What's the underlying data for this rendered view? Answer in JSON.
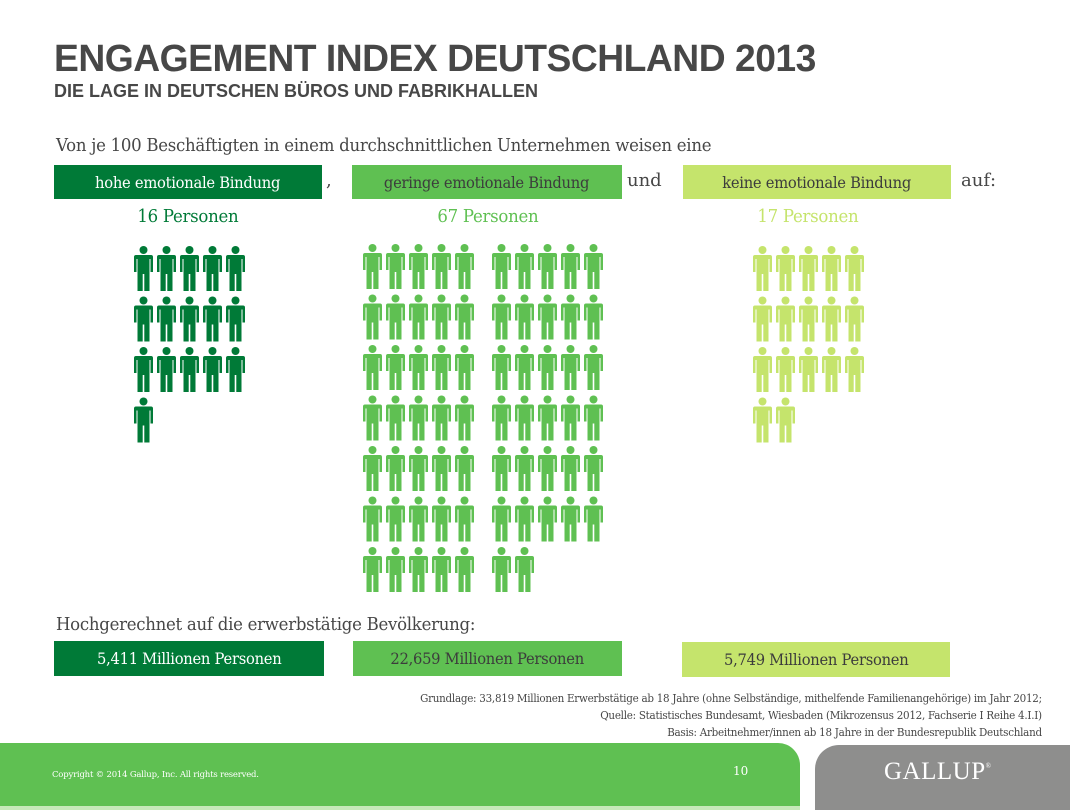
{
  "header": {
    "title": "ENGAGEMENT INDEX DEUTSCHLAND 2013",
    "subtitle": "DIE LAGE IN DEUTSCHEN BÜROS UND FABRIKHALLEN"
  },
  "intro": {
    "text": "Von je 100 Beschäftigten in einem durchschnittlichen Unternehmen weisen eine",
    "comma": ",",
    "and": "und",
    "suffix": "auf:"
  },
  "colors": {
    "high": "#007a37",
    "medium": "#5fc052",
    "low": "#c5e46c",
    "text": "#474747"
  },
  "chart_data": {
    "type": "pictogram",
    "title": "ENGAGEMENT INDEX DEUTSCHLAND 2013",
    "subtitle": "DIE LAGE IN DEUTSCHEN BÜROS UND FABRIKHALLEN",
    "unit": "Personen je 100 Beschäftigte",
    "categories": [
      "hohe emotionale Bindung",
      "geringe emotionale Bindung",
      "keine emotionale Bindung"
    ],
    "values": [
      16,
      67,
      17
    ],
    "count_labels": [
      "16 Personen",
      "67 Personen",
      "17 Personen"
    ],
    "projection_labels": [
      "5,411 Millionen Personen",
      "22,659 Millionen Personen",
      "5,749 Millionen Personen"
    ],
    "projection_values_millions": [
      5.411,
      22.659,
      5.749
    ],
    "icons_per_row": 5
  },
  "projection": {
    "title": "Hochgerechnet auf die erwerbstätige Bevölkerung:"
  },
  "footnotes": [
    "Grundlage: 33,819 Millionen Erwerbstätige ab 18 Jahre (ohne Selbständige, mithelfende Familienangehörige) im Jahr 2012;",
    "Quelle: Statistisches Bundesamt, Wiesbaden (Mikrozensus 2012, Fachserie I Reihe 4.I.I)",
    "Basis: Arbeitnehmer/innen ab 18 Jahre in der Bundesrepublik Deutschland"
  ],
  "footer": {
    "copyright": "Copyright © 2014 Gallup, Inc. All rights reserved.",
    "page_number": "10",
    "logo": "GALLUP",
    "logo_mark": "®"
  }
}
